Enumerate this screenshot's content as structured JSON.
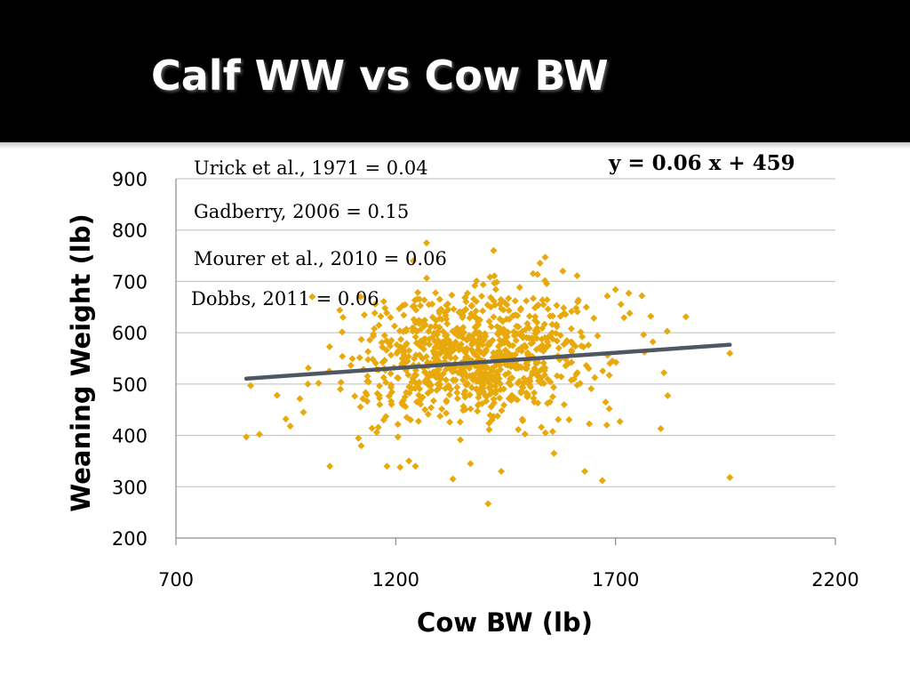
{
  "slide": {
    "title": "Calf WW vs Cow BW"
  },
  "colors": {
    "points": "#e8a90c",
    "trendline": "#4f5664",
    "title_bg": "#000000",
    "grid": "#bdbdbd"
  },
  "chart_data": {
    "type": "scatter",
    "title": "",
    "xlabel": "Cow BW (lb)",
    "ylabel": "Weaning Weight (lb)",
    "xlim": [
      700,
      2200
    ],
    "ylim": [
      200,
      900
    ],
    "x_ticks": [
      700,
      1200,
      1700,
      2200
    ],
    "y_ticks": [
      200,
      300,
      400,
      500,
      600,
      700,
      800,
      900
    ],
    "grid": "horizontal",
    "legend": "none",
    "marker": "diamond",
    "annotations": [
      "Urick et al., 1971 = 0.04",
      "Gadberry, 2006 = 0.15",
      "Mourer et al., 2010 = 0.06",
      "Dobbs, 2011 = 0.06"
    ],
    "equation": "y = 0.06 x + 459",
    "trendline": {
      "slope": 0.06,
      "intercept": 459,
      "x": [
        860,
        1960
      ]
    },
    "outliers": [
      [
        860,
        397
      ],
      [
        890,
        402
      ],
      [
        930,
        478
      ],
      [
        960,
        418
      ],
      [
        990,
        445
      ],
      [
        1050,
        340
      ],
      [
        1180,
        340
      ],
      [
        1210,
        338
      ],
      [
        1230,
        350
      ],
      [
        1330,
        315
      ],
      [
        1370,
        345
      ],
      [
        1410,
        267
      ],
      [
        1440,
        330
      ],
      [
        1560,
        365
      ],
      [
        1630,
        330
      ],
      [
        1670,
        312
      ],
      [
        1710,
        427
      ],
      [
        1680,
        420
      ],
      [
        1960,
        560
      ],
      [
        1960,
        318
      ],
      [
        1780,
        632
      ],
      [
        1810,
        522
      ],
      [
        1860,
        631
      ],
      [
        1730,
        677
      ],
      [
        1760,
        672
      ],
      [
        1700,
        684
      ],
      [
        1580,
        720
      ],
      [
        1540,
        747
      ],
      [
        1270,
        775
      ],
      [
        1240,
        740
      ],
      [
        1120,
        670
      ],
      [
        1010,
        670
      ],
      [
        1080,
        630
      ],
      [
        870,
        497
      ],
      [
        1000,
        500
      ]
    ],
    "cluster": {
      "count": 900,
      "x_mean": 1380,
      "x_sd": 135,
      "y_mean": 555,
      "y_sd": 62,
      "x_range": [
        950,
        1850
      ],
      "y_range": [
        340,
        760
      ]
    }
  }
}
